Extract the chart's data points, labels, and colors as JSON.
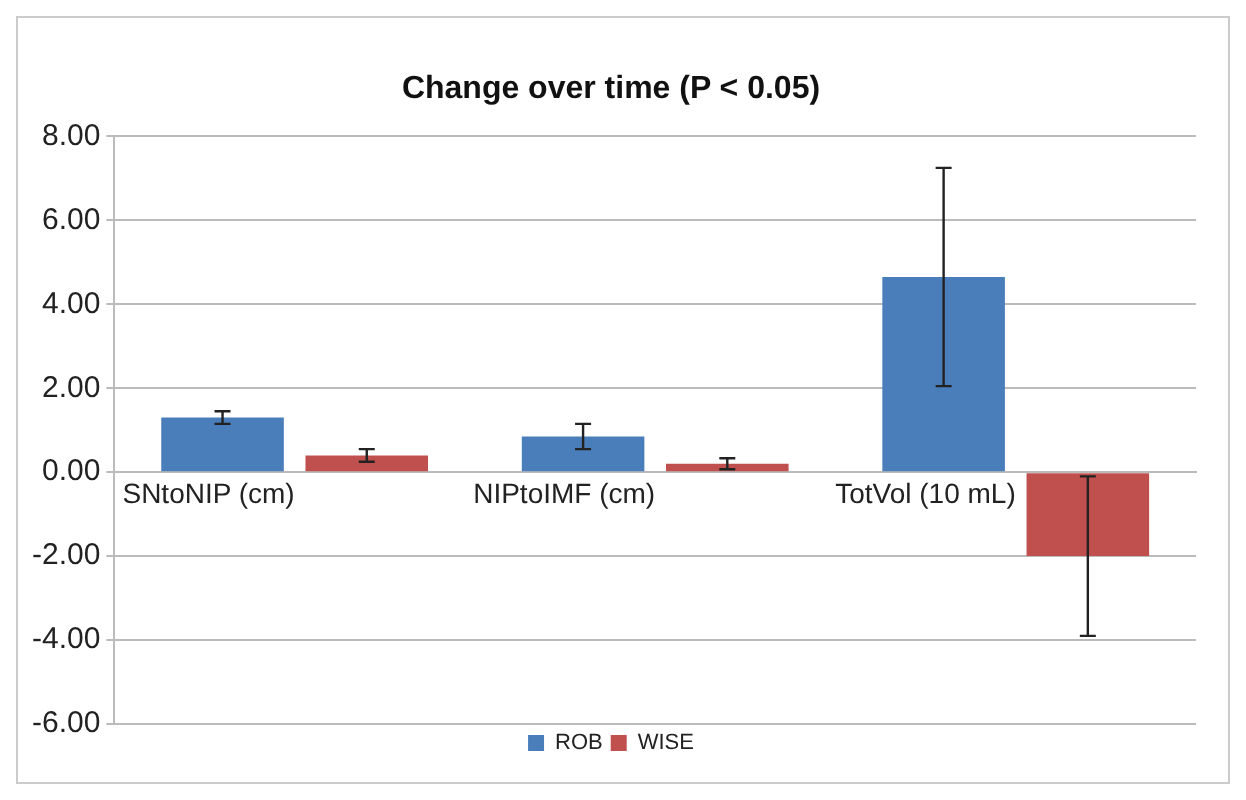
{
  "chart_data": {
    "type": "bar",
    "title": "Change over time (P < 0.05)",
    "categories": [
      "SNtoNIP (cm)",
      "NIPtoIMF (cm)",
      "TotVol (10 mL)"
    ],
    "series": [
      {
        "name": "ROB",
        "color": "#4a7ebb",
        "values": [
          1.3,
          0.85,
          4.65
        ],
        "errors": [
          0.15,
          0.3,
          2.6
        ]
      },
      {
        "name": "WISE",
        "color": "#c0504d",
        "values": [
          0.4,
          0.2,
          -2.0
        ],
        "errors": [
          0.15,
          0.13,
          1.9
        ]
      }
    ],
    "ylim": [
      -6,
      8
    ],
    "yticks": [
      {
        "value": -6,
        "label": "-6.00"
      },
      {
        "value": -4,
        "label": "-4.00"
      },
      {
        "value": -2,
        "label": "-2.00"
      },
      {
        "value": 0,
        "label": "0.00"
      },
      {
        "value": 2,
        "label": "2.00"
      },
      {
        "value": 4,
        "label": "4.00"
      },
      {
        "value": 6,
        "label": "6.00"
      },
      {
        "value": 8,
        "label": "8.00"
      }
    ],
    "grid": "y",
    "legend": "bottom"
  }
}
